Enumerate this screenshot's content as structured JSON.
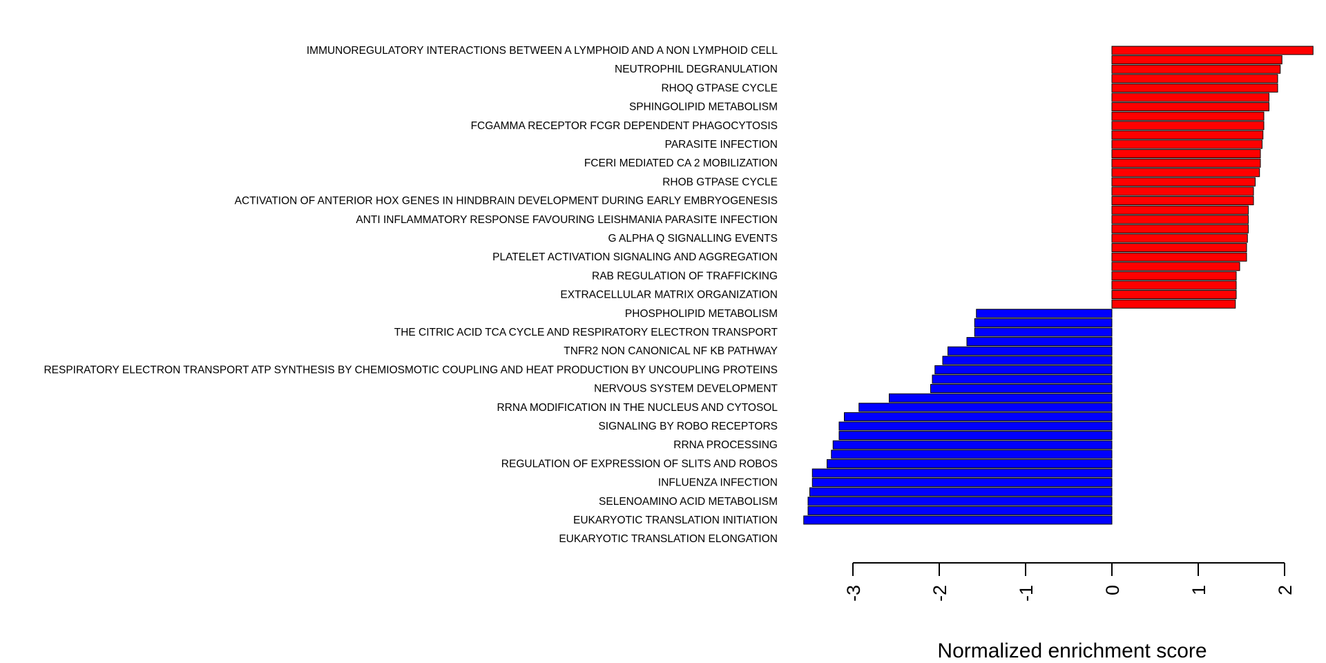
{
  "chart_data": {
    "type": "bar",
    "orientation": "horizontal",
    "xlabel": "Normalized enrichment score",
    "xlim": [
      -3.3,
      2.35
    ],
    "xticks": [
      -3,
      -2,
      -1,
      0,
      1,
      2
    ],
    "grid": false,
    "colors": {
      "positive": "#ff0000",
      "negative": "#0000ff",
      "outline": "#000000"
    },
    "shown_labels": [
      "IMMUNOREGULATORY INTERACTIONS BETWEEN A LYMPHOID AND A NON LYMPHOID CELL",
      "NEUTROPHIL DEGRANULATION",
      "RHOQ GTPASE CYCLE",
      "SPHINGOLIPID METABOLISM",
      "FCGAMMA RECEPTOR FCGR DEPENDENT PHAGOCYTOSIS",
      "PARASITE INFECTION",
      "FCERI MEDIATED CA 2 MOBILIZATION",
      "RHOB GTPASE CYCLE",
      "ACTIVATION OF ANTERIOR HOX GENES IN HINDBRAIN DEVELOPMENT DURING EARLY EMBRYOGENESIS",
      "ANTI INFLAMMATORY RESPONSE FAVOURING LEISHMANIA PARASITE INFECTION",
      "G ALPHA Q SIGNALLING EVENTS",
      "PLATELET ACTIVATION SIGNALING AND AGGREGATION",
      "RAB REGULATION OF TRAFFICKING",
      "EXTRACELLULAR MATRIX ORGANIZATION",
      "PHOSPHOLIPID METABOLISM",
      "THE CITRIC ACID TCA CYCLE AND RESPIRATORY ELECTRON TRANSPORT",
      "TNFR2 NON CANONICAL NF KB PATHWAY",
      "RESPIRATORY ELECTRON TRANSPORT ATP SYNTHESIS BY CHEMIOSMOTIC COUPLING AND HEAT PRODUCTION BY UNCOUPLING PROTEINS",
      "NERVOUS SYSTEM DEVELOPMENT",
      "RRNA MODIFICATION IN THE NUCLEUS AND CYTOSOL",
      "SIGNALING BY ROBO RECEPTORS",
      "RRNA PROCESSING",
      "REGULATION OF EXPRESSION OF SLITS AND ROBOS",
      "INFLUENZA INFECTION",
      "SELENOAMINO ACID METABOLISM",
      "EUKARYOTIC TRANSLATION INITIATION",
      "EUKARYOTIC TRANSLATION ELONGATION"
    ],
    "values": [
      2.33,
      1.97,
      1.95,
      1.92,
      1.92,
      1.82,
      1.82,
      1.76,
      1.76,
      1.75,
      1.74,
      1.72,
      1.72,
      1.71,
      1.66,
      1.64,
      1.64,
      1.58,
      1.58,
      1.58,
      1.57,
      1.56,
      1.56,
      1.48,
      1.44,
      1.44,
      1.44,
      1.43,
      -1.57,
      -1.59,
      -1.59,
      -1.68,
      -1.9,
      -1.96,
      -2.05,
      -2.08,
      -2.1,
      -2.58,
      -2.93,
      -3.1,
      -3.16,
      -3.16,
      -3.23,
      -3.25,
      -3.3,
      -3.47,
      -3.47,
      -3.5,
      -3.52,
      -3.52,
      -3.57
    ]
  }
}
